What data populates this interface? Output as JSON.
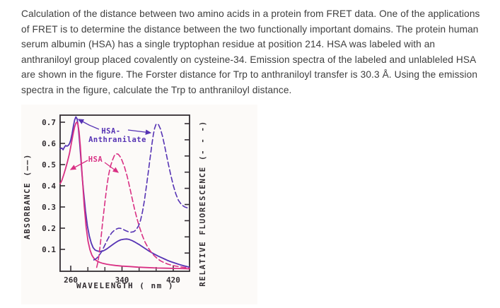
{
  "problem": {
    "text": "Calculation of the distance between two amino acids in a protein from FRET data. One of the applications of FRET is to determine the distance between the two functionally important domains. The protein human serum albumin (HSA) has a single tryptophan residue at position 214. HSA was labeled with an anthraniloyl group placed covalently on cysteine-34. Emission spectra of the labeled and unlableled HSA are shown in the figure. The Forster distance for Trp to anthraniloyl transfer is 30.3 Å. Using the emission spectra in the figure, calculate the Trp to anthraniloyl distance."
  },
  "colors": {
    "purple": "#5633b4",
    "pink": "#d93084",
    "axis": "#332d32",
    "figure_bg": "#fcfaf8",
    "text": "#3e3e3e"
  },
  "chart_data": {
    "type": "line",
    "title": "",
    "xlabel": "WAVELENGTH ( nm )",
    "ylabel_left": "ABSORBANCE (——)",
    "ylabel_right": "RELATIVE FLUORESCENCE (- - -)",
    "xlim": [
      243.4,
      445.4
    ],
    "ylim": [
      0,
      0.7333
    ],
    "x_ticks": [
      260,
      340,
      420
    ],
    "x_minor_ticks": [
      286.7,
      313.3,
      366.7,
      393.3
    ],
    "y_ticks": [
      0.1,
      0.2,
      0.3,
      0.4,
      0.5,
      0.6,
      0.7
    ],
    "right_axis_tick_count": 9,
    "grid": false,
    "legend": "curve labels with arrows inside plot",
    "annotations": {
      "hsa_anth_line1": "HSA-",
      "hsa_anth_line2": "Anthranilate",
      "hsa": "HSA"
    },
    "series": [
      {
        "name": "HSA-Anthranilate absorbance",
        "style": "solid",
        "color": "#5633b4",
        "points": [
          [
            243.5,
            0.575
          ],
          [
            246,
            0.578
          ],
          [
            248,
            0.57
          ],
          [
            250,
            0.582
          ],
          [
            252,
            0.59
          ],
          [
            254,
            0.587
          ],
          [
            256,
            0.59
          ],
          [
            258,
            0.598
          ],
          [
            260,
            0.615
          ],
          [
            262,
            0.645
          ],
          [
            264,
            0.68
          ],
          [
            266,
            0.71
          ],
          [
            268,
            0.725
          ],
          [
            270,
            0.715
          ],
          [
            272,
            0.67
          ],
          [
            274,
            0.6
          ],
          [
            276,
            0.52
          ],
          [
            278,
            0.44
          ],
          [
            280,
            0.37
          ],
          [
            283,
            0.28
          ],
          [
            286,
            0.21
          ],
          [
            289,
            0.163
          ],
          [
            292,
            0.13
          ],
          [
            295,
            0.108
          ],
          [
            298,
            0.097
          ],
          [
            302,
            0.092
          ],
          [
            306,
            0.09
          ],
          [
            310,
            0.092
          ],
          [
            314,
            0.098
          ],
          [
            318,
            0.106
          ],
          [
            323,
            0.117
          ],
          [
            328,
            0.128
          ],
          [
            333,
            0.138
          ],
          [
            338,
            0.145
          ],
          [
            343,
            0.148
          ],
          [
            347,
            0.149
          ],
          [
            351,
            0.147
          ],
          [
            356,
            0.141
          ],
          [
            361,
            0.133
          ],
          [
            366,
            0.124
          ],
          [
            371,
            0.114
          ],
          [
            376,
            0.104
          ],
          [
            381,
            0.094
          ],
          [
            386,
            0.085
          ],
          [
            391,
            0.077
          ],
          [
            396,
            0.069
          ],
          [
            401,
            0.062
          ],
          [
            406,
            0.055
          ],
          [
            411,
            0.048
          ],
          [
            416,
            0.042
          ],
          [
            421,
            0.037
          ],
          [
            426,
            0.032
          ],
          [
            431,
            0.027
          ],
          [
            436,
            0.023
          ],
          [
            441,
            0.019
          ],
          [
            445,
            0.016
          ]
        ]
      },
      {
        "name": "HSA absorbance",
        "style": "solid",
        "color": "#d93084",
        "points": [
          [
            243.5,
            0.41
          ],
          [
            246,
            0.425
          ],
          [
            249,
            0.452
          ],
          [
            252,
            0.482
          ],
          [
            255,
            0.515
          ],
          [
            258,
            0.552
          ],
          [
            261,
            0.6
          ],
          [
            264,
            0.65
          ],
          [
            266,
            0.678
          ],
          [
            268,
            0.695
          ],
          [
            269.5,
            0.7
          ],
          [
            271,
            0.694
          ],
          [
            273,
            0.655
          ],
          [
            275,
            0.585
          ],
          [
            277,
            0.49
          ],
          [
            279,
            0.395
          ],
          [
            281,
            0.305
          ],
          [
            284,
            0.205
          ],
          [
            287,
            0.138
          ],
          [
            290,
            0.098
          ],
          [
            293,
            0.073
          ],
          [
            296,
            0.058
          ],
          [
            300,
            0.047
          ],
          [
            305,
            0.039
          ],
          [
            310,
            0.034
          ],
          [
            316,
            0.03
          ],
          [
            322,
            0.027
          ],
          [
            330,
            0.024
          ],
          [
            340,
            0.021
          ],
          [
            352,
            0.019
          ],
          [
            365,
            0.016
          ],
          [
            380,
            0.014
          ],
          [
            395,
            0.012
          ],
          [
            410,
            0.011
          ],
          [
            425,
            0.01
          ],
          [
            440,
            0.009
          ],
          [
            445,
            0.008
          ]
        ]
      },
      {
        "name": "HSA fluorescence",
        "style": "dashed",
        "color": "#d93084",
        "points": [
          [
            300.5,
            0.015
          ],
          [
            302,
            0.035
          ],
          [
            304,
            0.07
          ],
          [
            306,
            0.12
          ],
          [
            308,
            0.175
          ],
          [
            310,
            0.235
          ],
          [
            313,
            0.315
          ],
          [
            316,
            0.39
          ],
          [
            319,
            0.45
          ],
          [
            322,
            0.492
          ],
          [
            325,
            0.52
          ],
          [
            328,
            0.542
          ],
          [
            331,
            0.551
          ],
          [
            334,
            0.549
          ],
          [
            337,
            0.538
          ],
          [
            340,
            0.52
          ],
          [
            344,
            0.488
          ],
          [
            348,
            0.445
          ],
          [
            352,
            0.393
          ],
          [
            356,
            0.338
          ],
          [
            360,
            0.285
          ],
          [
            364,
            0.238
          ],
          [
            368,
            0.198
          ],
          [
            372,
            0.163
          ],
          [
            376,
            0.134
          ],
          [
            380,
            0.111
          ],
          [
            385,
            0.089
          ],
          [
            390,
            0.071
          ],
          [
            395,
            0.057
          ],
          [
            400,
            0.046
          ],
          [
            406,
            0.037
          ],
          [
            412,
            0.03
          ],
          [
            419,
            0.024
          ],
          [
            426,
            0.02
          ],
          [
            434,
            0.016
          ],
          [
            442,
            0.013
          ],
          [
            445,
            0.012
          ]
        ]
      },
      {
        "name": "HSA-Anthranilate fluorescence",
        "style": "dashed",
        "color": "#5633b4",
        "points": [
          [
            296,
            0.05
          ],
          [
            300,
            0.057
          ],
          [
            304,
            0.07
          ],
          [
            308,
            0.088
          ],
          [
            312,
            0.112
          ],
          [
            316,
            0.138
          ],
          [
            320,
            0.161
          ],
          [
            324,
            0.178
          ],
          [
            328,
            0.19
          ],
          [
            332,
            0.197
          ],
          [
            335,
            0.2
          ],
          [
            338,
            0.199
          ],
          [
            342,
            0.194
          ],
          [
            346,
            0.188
          ],
          [
            350,
            0.183
          ],
          [
            354,
            0.181
          ],
          [
            358,
            0.183
          ],
          [
            362,
            0.192
          ],
          [
            366,
            0.212
          ],
          [
            369,
            0.238
          ],
          [
            372,
            0.278
          ],
          [
            375,
            0.33
          ],
          [
            378,
            0.395
          ],
          [
            381,
            0.465
          ],
          [
            384,
            0.535
          ],
          [
            387,
            0.603
          ],
          [
            389,
            0.643
          ],
          [
            391,
            0.672
          ],
          [
            393,
            0.689
          ],
          [
            395,
            0.693
          ],
          [
            397,
            0.688
          ],
          [
            400,
            0.668
          ],
          [
            403,
            0.636
          ],
          [
            406,
            0.596
          ],
          [
            409,
            0.552
          ],
          [
            412,
            0.508
          ],
          [
            416,
            0.452
          ],
          [
            420,
            0.402
          ],
          [
            424,
            0.362
          ],
          [
            428,
            0.332
          ],
          [
            433,
            0.31
          ],
          [
            438,
            0.3
          ],
          [
            442,
            0.296
          ],
          [
            445,
            0.294
          ]
        ]
      }
    ]
  }
}
